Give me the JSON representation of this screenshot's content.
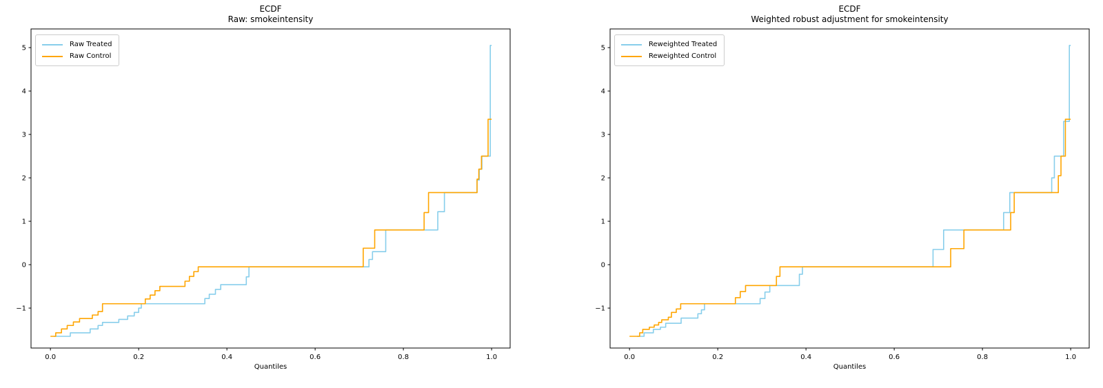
{
  "figure": {
    "background": "#ffffff",
    "axis_color": "#000000",
    "tick_label_color": "#000000"
  },
  "chart_data": [
    {
      "type": "line",
      "step_style": "post",
      "title": "ECDF",
      "subtitle": "Raw: smokeintensity",
      "xlabel": "Quantiles",
      "ylabel": "",
      "xlim": [
        -0.044,
        1.042
      ],
      "ylim": [
        -1.92,
        5.43
      ],
      "x_ticks": [
        0.0,
        0.2,
        0.4,
        0.6,
        0.8,
        1.0
      ],
      "x_tick_labels": [
        "0.0",
        "0.2",
        "0.4",
        "0.6",
        "0.8",
        "1.0"
      ],
      "y_ticks": [
        -1,
        0,
        1,
        2,
        3,
        4,
        5
      ],
      "y_tick_labels": [
        "−1",
        "0",
        "1",
        "2",
        "3",
        "4",
        "5"
      ],
      "grid": false,
      "legend_position": "upper left",
      "series": [
        {
          "name": "Raw Treated",
          "color": "#87CEEB",
          "points": [
            [
              0.008,
              -1.65
            ],
            [
              0.045,
              -1.57
            ],
            [
              0.09,
              -1.48
            ],
            [
              0.108,
              -1.4
            ],
            [
              0.118,
              -1.33
            ],
            [
              0.155,
              -1.26
            ],
            [
              0.175,
              -1.18
            ],
            [
              0.19,
              -1.1
            ],
            [
              0.2,
              -1.0
            ],
            [
              0.206,
              -0.9
            ],
            [
              0.35,
              -0.78
            ],
            [
              0.36,
              -0.68
            ],
            [
              0.374,
              -0.57
            ],
            [
              0.386,
              -0.46
            ],
            [
              0.444,
              -0.28
            ],
            [
              0.45,
              -0.05
            ],
            [
              0.722,
              0.12
            ],
            [
              0.73,
              0.3
            ],
            [
              0.76,
              0.8
            ],
            [
              0.878,
              1.22
            ],
            [
              0.893,
              1.66
            ],
            [
              0.967,
              1.95
            ],
            [
              0.972,
              2.2
            ],
            [
              0.978,
              2.5
            ],
            [
              0.997,
              5.05
            ],
            [
              1.0,
              5.05
            ]
          ]
        },
        {
          "name": "Raw Control",
          "color": "#FFA500",
          "points": [
            [
              0.0,
              -1.65
            ],
            [
              0.012,
              -1.57
            ],
            [
              0.025,
              -1.48
            ],
            [
              0.038,
              -1.4
            ],
            [
              0.052,
              -1.32
            ],
            [
              0.066,
              -1.24
            ],
            [
              0.095,
              -1.16
            ],
            [
              0.108,
              -1.08
            ],
            [
              0.118,
              -0.9
            ],
            [
              0.215,
              -0.79
            ],
            [
              0.226,
              -0.7
            ],
            [
              0.237,
              -0.6
            ],
            [
              0.248,
              -0.5
            ],
            [
              0.305,
              -0.38
            ],
            [
              0.315,
              -0.27
            ],
            [
              0.325,
              -0.16
            ],
            [
              0.335,
              -0.05
            ],
            [
              0.709,
              0.38
            ],
            [
              0.735,
              0.8
            ],
            [
              0.847,
              1.2
            ],
            [
              0.857,
              1.66
            ],
            [
              0.967,
              1.97
            ],
            [
              0.971,
              2.2
            ],
            [
              0.977,
              2.5
            ],
            [
              0.992,
              3.35
            ],
            [
              1.0,
              3.35
            ]
          ]
        }
      ]
    },
    {
      "type": "line",
      "step_style": "post",
      "title": "ECDF",
      "subtitle": "Weighted robust adjustment for smokeintensity",
      "xlabel": "Quantiles",
      "ylabel": "",
      "xlim": [
        -0.044,
        1.042
      ],
      "ylim": [
        -1.92,
        5.43
      ],
      "x_ticks": [
        0.0,
        0.2,
        0.4,
        0.6,
        0.8,
        1.0
      ],
      "x_tick_labels": [
        "0.0",
        "0.2",
        "0.4",
        "0.6",
        "0.8",
        "1.0"
      ],
      "y_ticks": [
        -1,
        0,
        1,
        2,
        3,
        4,
        5
      ],
      "y_tick_labels": [
        "−1",
        "0",
        "1",
        "2",
        "3",
        "4",
        "5"
      ],
      "grid": false,
      "legend_position": "upper left",
      "series": [
        {
          "name": "Reweighted Treated",
          "color": "#87CEEB",
          "points": [
            [
              0.017,
              -1.65
            ],
            [
              0.033,
              -1.57
            ],
            [
              0.054,
              -1.49
            ],
            [
              0.07,
              -1.44
            ],
            [
              0.082,
              -1.35
            ],
            [
              0.117,
              -1.23
            ],
            [
              0.155,
              -1.13
            ],
            [
              0.163,
              -1.04
            ],
            [
              0.17,
              -0.9
            ],
            [
              0.296,
              -0.78
            ],
            [
              0.307,
              -0.63
            ],
            [
              0.318,
              -0.48
            ],
            [
              0.385,
              -0.22
            ],
            [
              0.392,
              -0.05
            ],
            [
              0.688,
              0.35
            ],
            [
              0.712,
              0.8
            ],
            [
              0.848,
              1.2
            ],
            [
              0.862,
              1.66
            ],
            [
              0.957,
              2.0
            ],
            [
              0.963,
              2.5
            ],
            [
              0.984,
              3.3
            ],
            [
              0.997,
              5.05
            ],
            [
              1.0,
              5.05
            ]
          ]
        },
        {
          "name": "Reweighted Control",
          "color": "#FFA500",
          "points": [
            [
              0.0,
              -1.65
            ],
            [
              0.023,
              -1.57
            ],
            [
              0.03,
              -1.49
            ],
            [
              0.045,
              -1.44
            ],
            [
              0.056,
              -1.39
            ],
            [
              0.066,
              -1.33
            ],
            [
              0.073,
              -1.27
            ],
            [
              0.088,
              -1.21
            ],
            [
              0.095,
              -1.1
            ],
            [
              0.106,
              -1.02
            ],
            [
              0.116,
              -0.9
            ],
            [
              0.24,
              -0.76
            ],
            [
              0.251,
              -0.62
            ],
            [
              0.263,
              -0.48
            ],
            [
              0.333,
              -0.27
            ],
            [
              0.341,
              -0.05
            ],
            [
              0.728,
              0.37
            ],
            [
              0.758,
              0.8
            ],
            [
              0.864,
              1.2
            ],
            [
              0.872,
              1.66
            ],
            [
              0.972,
              2.05
            ],
            [
              0.978,
              2.5
            ],
            [
              0.988,
              3.35
            ],
            [
              1.0,
              3.35
            ]
          ]
        }
      ]
    }
  ]
}
